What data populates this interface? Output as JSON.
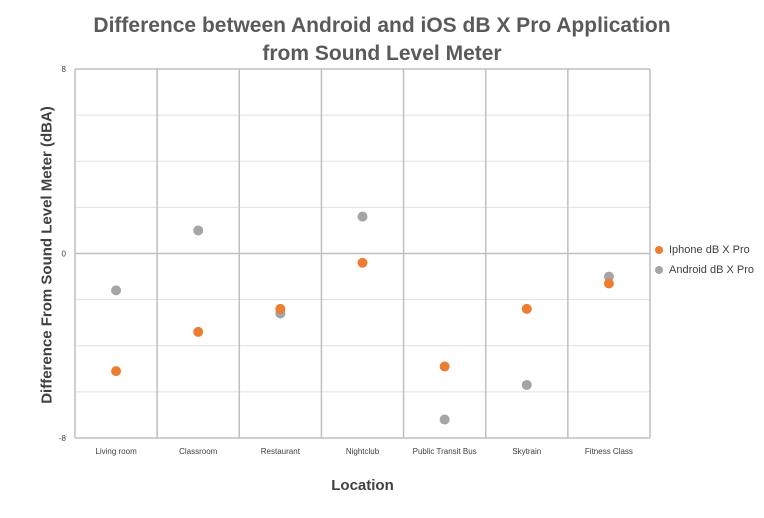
{
  "chart_data": {
    "type": "scatter",
    "title_lines": [
      "Difference between Android and iOS dB X Pro Application",
      "from Sound Level Meter"
    ],
    "xlabel": "Location",
    "ylabel": "Difference From Sound Level Meter (dBA)",
    "categories": [
      "Living room",
      "Classroom",
      "Restaurant",
      "Nightclub",
      "Public Transit Bus",
      "Skytrain",
      "Fitness Class"
    ],
    "ylim": [
      -8,
      8
    ],
    "y_ticks": [
      -8,
      0,
      8
    ],
    "y_tick_labels": [
      "-8",
      "0",
      "8"
    ],
    "series": [
      {
        "name": "Iphone dB X Pro",
        "color": "#ed7d31",
        "values": [
          -5.1,
          -3.4,
          -2.4,
          -0.4,
          -4.9,
          -2.4,
          -1.3
        ]
      },
      {
        "name": "Android dB X Pro",
        "color": "#a5a5a5",
        "values": [
          -1.6,
          1.0,
          -2.6,
          1.6,
          -7.2,
          -5.7,
          -1.0
        ]
      }
    ],
    "grid": true,
    "legend_position": "right"
  }
}
